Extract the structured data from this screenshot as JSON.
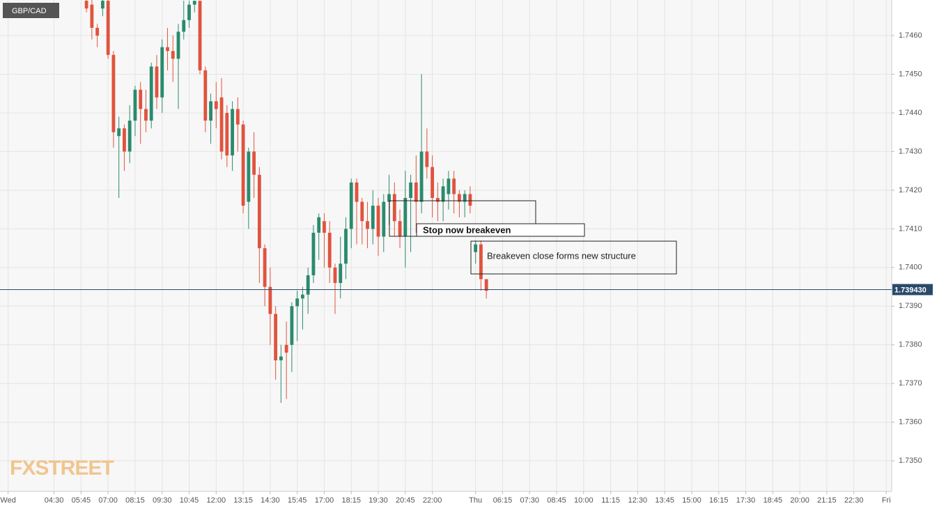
{
  "chart_data": {
    "type": "candlestick",
    "title": "GBP/CAD",
    "watermark": "FXSTREET",
    "up_color": "#2b8a6e",
    "down_color": "#e0533e",
    "grid": true,
    "xlim": [
      0,
      165
    ],
    "ylim": [
      1.73421,
      1.74692
    ],
    "x": [
      16,
      17,
      18,
      19,
      20,
      21,
      22,
      23,
      24,
      25,
      26,
      27,
      28,
      29,
      30,
      31,
      32,
      33,
      34,
      35,
      36,
      37,
      38,
      39,
      40,
      41,
      42,
      43,
      44,
      45,
      46,
      47,
      48,
      49,
      50,
      51,
      52,
      53,
      54,
      55,
      56,
      57,
      58,
      59,
      60,
      61,
      62,
      63,
      64,
      65,
      66,
      67,
      68,
      69,
      70,
      71,
      72,
      73,
      74,
      75,
      76,
      77,
      78,
      79,
      80,
      81,
      82,
      83,
      84,
      85,
      86,
      87,
      88,
      89,
      90
    ],
    "open": [
      1.7469,
      1.7468,
      1.7462,
      1.7467,
      1.7469,
      1.7455,
      1.7434,
      1.7436,
      1.743,
      1.7438,
      1.7446,
      1.7441,
      1.7438,
      1.7452,
      1.7444,
      1.7457,
      1.7456,
      1.7454,
      1.7461,
      1.7464,
      1.7468,
      1.7469,
      1.7451,
      1.7438,
      1.7443,
      1.7444,
      1.744,
      1.7429,
      1.7441,
      1.7437,
      1.7417,
      1.743,
      1.7424,
      1.7405,
      1.7395,
      1.7388,
      1.7376,
      1.738,
      1.738,
      1.739,
      1.7392,
      1.7393,
      1.7398,
      1.7409,
      1.7412,
      1.7409,
      1.74,
      1.7396,
      1.7401,
      1.741,
      1.7422,
      1.7417,
      1.7412,
      1.741,
      1.7416,
      1.7408,
      1.7417,
      1.7419,
      1.7412,
      1.7408,
      1.7418,
      1.7422,
      1.7417,
      1.743,
      1.7426,
      1.7418,
      1.7417,
      1.7419,
      1.7423,
      1.7419,
      1.7417,
      1.7419,
      1.7404,
      1.7406,
      1.7397
    ],
    "high": [
      1.7471,
      1.747,
      1.7463,
      1.747,
      1.747,
      1.7456,
      1.7439,
      1.7437,
      1.7442,
      1.7447,
      1.7448,
      1.7446,
      1.7453,
      1.7455,
      1.7459,
      1.7462,
      1.746,
      1.7463,
      1.7469,
      1.7469,
      1.7469,
      1.7469,
      1.7452,
      1.7445,
      1.7448,
      1.7449,
      1.7442,
      1.7443,
      1.7444,
      1.7438,
      1.7431,
      1.7435,
      1.7426,
      1.7406,
      1.74,
      1.739,
      1.738,
      1.7386,
      1.7391,
      1.7394,
      1.7395,
      1.74,
      1.7411,
      1.7414,
      1.7414,
      1.7412,
      1.7401,
      1.7408,
      1.7413,
      1.7423,
      1.7423,
      1.7418,
      1.7417,
      1.742,
      1.7418,
      1.7419,
      1.7424,
      1.7422,
      1.7415,
      1.7425,
      1.7424,
      1.7429,
      1.745,
      1.7436,
      1.7429,
      1.7422,
      1.7423,
      1.7425,
      1.7425,
      1.742,
      1.742,
      1.7421,
      1.7407,
      1.7407,
      1.7397
    ],
    "low": [
      1.7466,
      1.7459,
      1.7457,
      1.7465,
      1.7454,
      1.7431,
      1.7418,
      1.7425,
      1.7427,
      1.7434,
      1.7432,
      1.7435,
      1.7436,
      1.7441,
      1.744,
      1.7451,
      1.7448,
      1.7441,
      1.7459,
      1.7462,
      1.7466,
      1.745,
      1.7435,
      1.7432,
      1.7436,
      1.7428,
      1.7426,
      1.7425,
      1.743,
      1.7414,
      1.741,
      1.7418,
      1.7396,
      1.739,
      1.738,
      1.7371,
      1.7365,
      1.7366,
      1.7373,
      1.7381,
      1.7384,
      1.7388,
      1.7396,
      1.7402,
      1.74,
      1.7396,
      1.7388,
      1.7392,
      1.7397,
      1.7405,
      1.7406,
      1.7406,
      1.7405,
      1.7406,
      1.7403,
      1.7404,
      1.7411,
      1.7408,
      1.7405,
      1.74,
      1.7404,
      1.7409,
      1.7414,
      1.7423,
      1.7413,
      1.7412,
      1.7412,
      1.7415,
      1.7414,
      1.7413,
      1.7413,
      1.7414,
      1.7401,
      1.7394,
      1.7392
    ],
    "close": [
      1.7467,
      1.7462,
      1.746,
      1.7469,
      1.7455,
      1.7435,
      1.7436,
      1.743,
      1.7438,
      1.7446,
      1.7441,
      1.7438,
      1.7452,
      1.7444,
      1.7457,
      1.7456,
      1.7454,
      1.7461,
      1.7464,
      1.7468,
      1.7469,
      1.7451,
      1.7438,
      1.7443,
      1.7441,
      1.743,
      1.7429,
      1.7441,
      1.7437,
      1.7416,
      1.743,
      1.7424,
      1.7405,
      1.7395,
      1.7388,
      1.7376,
      1.7377,
      1.7378,
      1.739,
      1.7392,
      1.7393,
      1.7398,
      1.7409,
      1.7413,
      1.7409,
      1.74,
      1.7396,
      1.7401,
      1.741,
      1.7422,
      1.7417,
      1.7412,
      1.741,
      1.7416,
      1.7408,
      1.7417,
      1.7419,
      1.7412,
      1.7408,
      1.7418,
      1.7422,
      1.7417,
      1.743,
      1.7426,
      1.7418,
      1.7417,
      1.7421,
      1.7423,
      1.7419,
      1.7417,
      1.7419,
      1.7416,
      1.7406,
      1.7397,
      1.7394
    ],
    "yticks": [
      {
        "value": 1.735,
        "label": "1.7350"
      },
      {
        "value": 1.736,
        "label": "1.7360"
      },
      {
        "value": 1.737,
        "label": "1.7370"
      },
      {
        "value": 1.738,
        "label": "1.7380"
      },
      {
        "value": 1.739,
        "label": "1.7390"
      },
      {
        "value": 1.74,
        "label": "1.7400"
      },
      {
        "value": 1.741,
        "label": "1.7410"
      },
      {
        "value": 1.742,
        "label": "1.7420"
      },
      {
        "value": 1.743,
        "label": "1.7430"
      },
      {
        "value": 1.744,
        "label": "1.7440"
      },
      {
        "value": 1.745,
        "label": "1.7450"
      },
      {
        "value": 1.746,
        "label": "1.7460"
      }
    ],
    "xticks": [
      {
        "value": 1.5,
        "label": "Wed"
      },
      {
        "value": 10,
        "label": "04:30"
      },
      {
        "value": 15,
        "label": "05:45"
      },
      {
        "value": 20,
        "label": "07:00"
      },
      {
        "value": 25,
        "label": "08:15"
      },
      {
        "value": 30,
        "label": "09:30"
      },
      {
        "value": 35,
        "label": "10:45"
      },
      {
        "value": 40,
        "label": "12:00"
      },
      {
        "value": 45,
        "label": "13:15"
      },
      {
        "value": 50,
        "label": "14:30"
      },
      {
        "value": 55,
        "label": "15:45"
      },
      {
        "value": 60,
        "label": "17:00"
      },
      {
        "value": 65,
        "label": "18:15"
      },
      {
        "value": 70,
        "label": "19:30"
      },
      {
        "value": 75,
        "label": "20:45"
      },
      {
        "value": 80,
        "label": "22:00"
      },
      {
        "value": 88,
        "label": "Thu"
      },
      {
        "value": 93,
        "label": "06:15"
      },
      {
        "value": 98,
        "label": "07:30"
      },
      {
        "value": 103,
        "label": "08:45"
      },
      {
        "value": 108,
        "label": "10:00"
      },
      {
        "value": 113,
        "label": "11:15"
      },
      {
        "value": 118,
        "label": "12:30"
      },
      {
        "value": 123,
        "label": "13:45"
      },
      {
        "value": 128,
        "label": "15:00"
      },
      {
        "value": 133,
        "label": "16:15"
      },
      {
        "value": 138,
        "label": "17:30"
      },
      {
        "value": 143,
        "label": "18:45"
      },
      {
        "value": 148,
        "label": "20:00"
      },
      {
        "value": 153,
        "label": "21:15"
      },
      {
        "value": 158,
        "label": "22:30"
      },
      {
        "value": 164,
        "label": "Fri"
      }
    ],
    "current_price": {
      "value": 1.73943,
      "label": "1.739430",
      "color": "#2a4a6b"
    },
    "annotations": [
      "Stop now breakeven",
      "Breakeven close forms new structure"
    ]
  }
}
